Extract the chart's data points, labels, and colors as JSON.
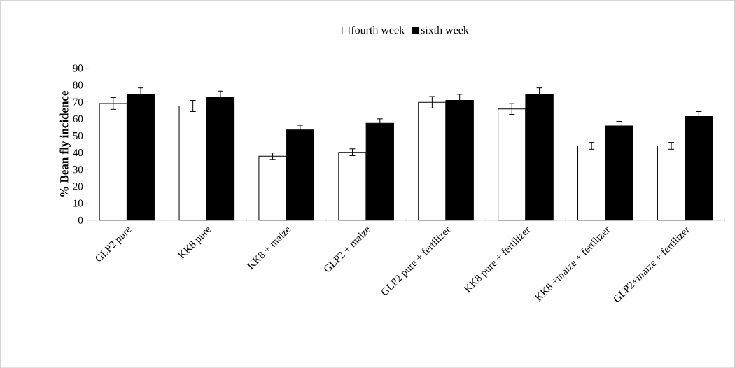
{
  "chart_data": {
    "type": "bar",
    "ylabel": "% Bean fly incidence",
    "categories": [
      "GLP2 pure",
      "KK8 pure",
      "KK8 + maize",
      "GLP2 + maize",
      "GLP2 pure + fertilizer",
      "KK8 pure + fertilizer",
      "KK8 +maize + fertilizer",
      "GLP2+maize + fertilizer"
    ],
    "series": [
      {
        "name": "fourth week",
        "color": "#ffffff",
        "values": [
          69.1,
          67.6,
          37.9,
          40.2,
          69.8,
          65.8,
          44.0,
          44.0
        ],
        "errors": [
          3.5,
          3.3,
          1.9,
          2.0,
          3.4,
          3.2,
          2.0,
          2.0
        ]
      },
      {
        "name": "sixth week",
        "color": "#000000",
        "values": [
          74.6,
          72.9,
          53.4,
          57.3,
          70.9,
          74.6,
          55.8,
          61.4
        ],
        "errors": [
          3.7,
          3.5,
          2.8,
          2.7,
          3.6,
          3.7,
          2.7,
          2.9
        ]
      }
    ],
    "ylim": [
      0,
      90
    ],
    "yticks": [
      0,
      10,
      20,
      30,
      40,
      50,
      60,
      70,
      80,
      90
    ],
    "grid": false,
    "legend": "top"
  }
}
